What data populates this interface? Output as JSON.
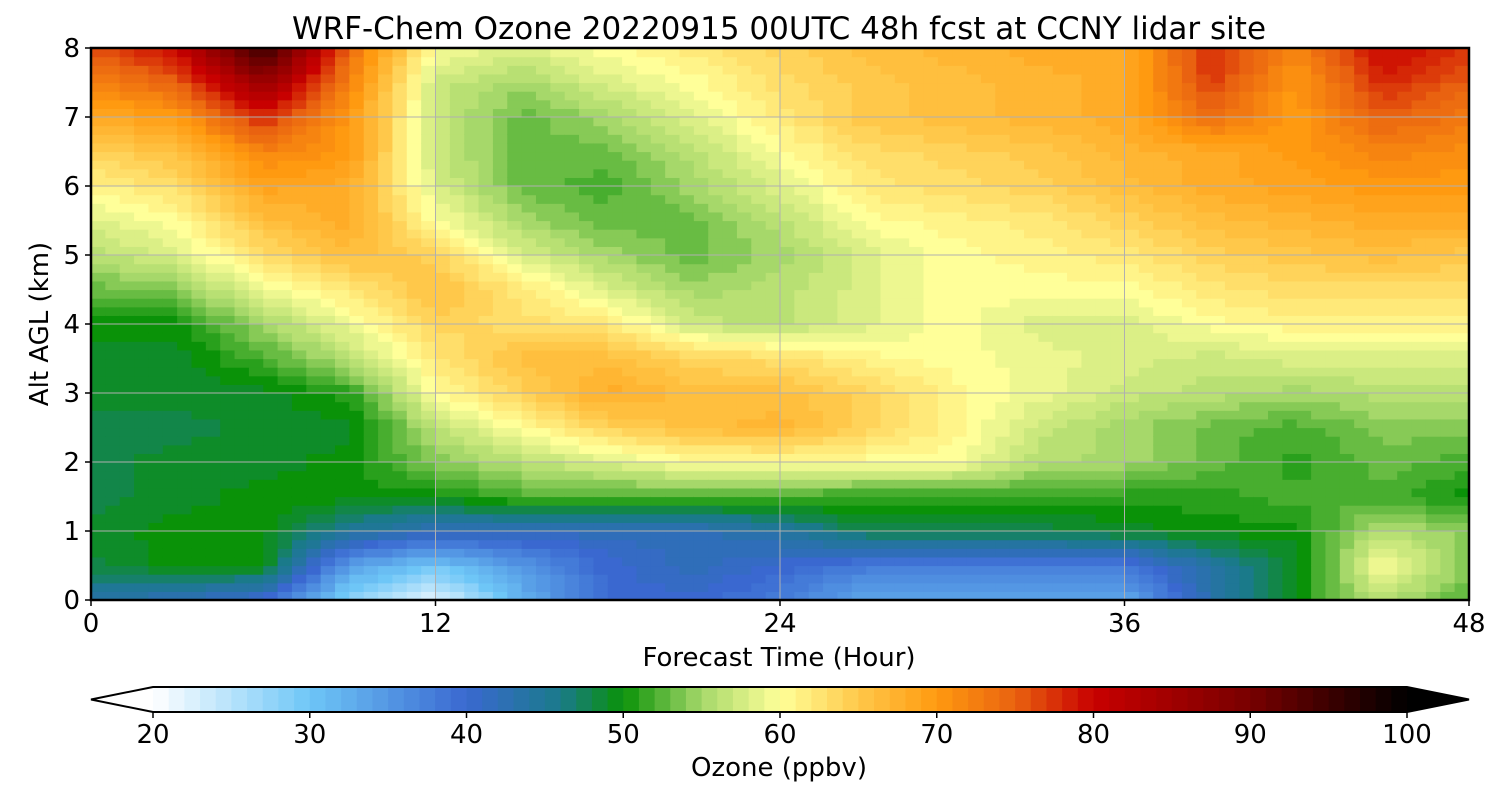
{
  "chart_data": {
    "type": "heatmap",
    "title": "WRF-Chem Ozone  20220915 00UTC 48h fcst at CCNY lidar site",
    "xlabel": "Forecast Time (Hour)",
    "ylabel": "Alt AGL (km)",
    "xlim": [
      0,
      48
    ],
    "ylim": [
      0,
      8
    ],
    "xticks": [
      0,
      12,
      24,
      36,
      48
    ],
    "yticks": [
      0,
      1,
      2,
      3,
      4,
      5,
      6,
      7,
      8
    ],
    "grid": true,
    "x": [
      0,
      3,
      6,
      9,
      12,
      15,
      18,
      21,
      24,
      27,
      30,
      33,
      36,
      39,
      42,
      45,
      48
    ],
    "y": [
      0,
      0.5,
      1,
      1.5,
      2,
      2.5,
      3,
      3.5,
      4,
      4.5,
      5,
      5.5,
      6,
      6.5,
      7,
      7.5,
      8
    ],
    "z": [
      [
        44,
        42,
        40,
        28,
        22,
        32,
        40,
        40,
        38,
        33,
        33,
        33,
        33,
        43,
        50,
        56,
        52
      ],
      [
        48,
        50,
        50,
        34,
        30,
        35,
        40,
        42,
        40,
        38,
        38,
        38,
        38,
        44,
        49,
        60,
        54
      ],
      [
        49,
        50,
        50,
        45,
        42,
        42,
        42,
        42,
        44,
        48,
        48,
        48,
        49,
        50,
        50,
        56,
        54
      ],
      [
        48,
        49,
        50,
        50,
        50,
        52,
        52,
        52,
        52,
        51,
        51,
        51,
        51,
        51,
        52,
        52,
        50
      ],
      [
        48,
        49,
        49,
        50,
        54,
        56,
        58,
        60,
        60,
        60,
        60,
        56,
        55,
        53,
        51,
        53,
        52
      ],
      [
        48,
        48,
        49,
        49,
        56,
        60,
        64,
        66,
        67,
        64,
        61,
        57,
        55,
        53,
        52,
        54,
        54
      ],
      [
        49,
        49,
        49,
        51,
        60,
        64,
        68,
        66,
        66,
        64,
        61,
        59,
        57,
        56,
        55,
        56,
        56
      ],
      [
        49,
        49,
        52,
        56,
        62,
        66,
        66,
        64,
        63,
        61,
        60,
        59,
        58,
        57,
        58,
        58,
        58
      ],
      [
        50,
        50,
        55,
        59,
        64,
        63,
        62,
        57,
        56,
        58,
        60,
        58,
        58,
        60,
        61,
        61,
        61
      ],
      [
        53,
        54,
        59,
        62,
        66,
        62,
        58,
        55,
        56,
        58,
        60,
        60,
        60,
        62,
        63,
        63,
        63
      ],
      [
        56,
        58,
        63,
        66,
        64,
        58,
        55,
        53,
        55,
        58,
        60,
        61,
        62,
        64,
        65,
        66,
        65
      ],
      [
        58,
        60,
        66,
        68,
        60,
        55,
        53,
        53,
        56,
        60,
        61,
        62,
        64,
        66,
        67,
        68,
        68
      ],
      [
        61,
        63,
        69,
        68,
        58,
        53,
        52,
        55,
        58,
        62,
        63,
        64,
        66,
        68,
        69,
        70,
        70
      ],
      [
        64,
        66,
        72,
        70,
        57,
        53,
        53,
        56,
        60,
        63,
        64,
        65,
        67,
        68,
        70,
        72,
        71
      ],
      [
        68,
        70,
        78,
        70,
        57,
        53,
        55,
        58,
        62,
        65,
        66,
        67,
        68,
        74,
        70,
        75,
        73
      ],
      [
        72,
        75,
        86,
        72,
        57,
        55,
        58,
        60,
        63,
        65,
        66,
        67,
        68,
        77,
        70,
        78,
        75
      ],
      [
        76,
        80,
        96,
        74,
        60,
        58,
        60,
        62,
        64,
        66,
        67,
        68,
        68,
        78,
        72,
        80,
        77
      ]
    ],
    "colorbar": {
      "label": "Ozone  (ppbv)",
      "min": 20,
      "max": 100,
      "ticks": [
        20,
        30,
        40,
        50,
        60,
        70,
        80,
        90,
        100
      ],
      "extend": "both",
      "colors": [
        {
          "v": 20,
          "c": "#ffffff"
        },
        {
          "v": 30,
          "c": "#6ec6f7"
        },
        {
          "v": 40,
          "c": "#3a68d0"
        },
        {
          "v": 46,
          "c": "#1a7a8a"
        },
        {
          "v": 50,
          "c": "#0a9208"
        },
        {
          "v": 55,
          "c": "#a6d86a"
        },
        {
          "v": 60,
          "c": "#ffff99"
        },
        {
          "v": 65,
          "c": "#ffc84a"
        },
        {
          "v": 70,
          "c": "#ff9a10"
        },
        {
          "v": 75,
          "c": "#e96210"
        },
        {
          "v": 80,
          "c": "#c80000"
        },
        {
          "v": 90,
          "c": "#780000"
        },
        {
          "v": 100,
          "c": "#000000"
        }
      ]
    }
  }
}
